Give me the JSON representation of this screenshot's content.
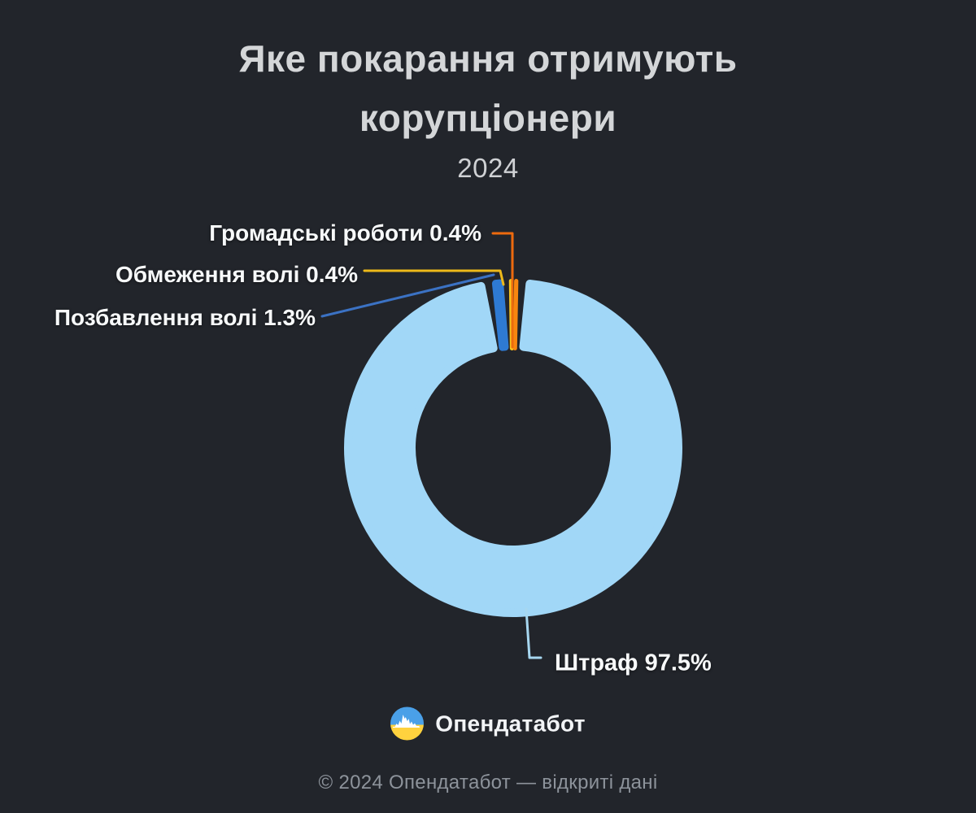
{
  "background_color": "#22252b",
  "title": {
    "line1": "Яке покарання отримують",
    "line2": "корупціонери",
    "year": "2024"
  },
  "chart_data": {
    "type": "pie",
    "donut": true,
    "title": "Яке покарання отримують корупціонери",
    "subtitle": "2024",
    "unit": "%",
    "legend_position": "callout-labels",
    "segments": [
      {
        "label": "Штраф",
        "value": 97.5,
        "color": "#a1d7f7",
        "leader_color": "#a7d7f0",
        "callout": "Штраф 97.5%"
      },
      {
        "label": "Позбавлення волі",
        "value": 1.3,
        "color": "#2e7ad3",
        "leader_color": "#3b72c4",
        "callout": "Позбавлення волі 1.3%"
      },
      {
        "label": "Обмеження волі",
        "value": 0.4,
        "color": "#f9c51d",
        "leader_color": "#edb91a",
        "callout": "Обмеження волі 0.4%"
      },
      {
        "label": "Громадські роботи",
        "value": 0.4,
        "color": "#f8860f",
        "leader_color": "#ed6a0e",
        "callout": "Громадські роботи 0.4%"
      }
    ]
  },
  "logo": {
    "text": "Опендатабот",
    "circle_blue": "#4aa0e8",
    "circle_yellow": "#ffd23e",
    "pulse_color": "#ffffff"
  },
  "footer": {
    "text": "© 2024 Опендатабот — відкриті дані"
  }
}
